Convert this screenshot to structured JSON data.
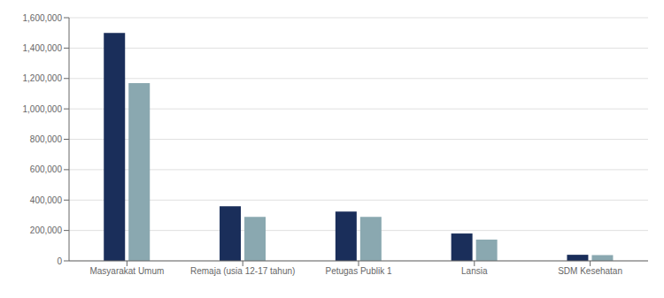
{
  "chart_data": {
    "type": "bar",
    "categories": [
      "Masyarakat Umum",
      "Remaja (usia 12-17 tahun)",
      "Petugas Publik 1",
      "Lansia",
      "SDM Kesehatan"
    ],
    "series": [
      {
        "color": "#1a2e5a",
        "values": [
          1500000,
          360000,
          325000,
          180000,
          40000
        ]
      },
      {
        "color": "#8aa8b0",
        "values": [
          1170000,
          290000,
          290000,
          140000,
          38000
        ]
      }
    ],
    "ylim": [
      0,
      1600000
    ],
    "yticks": [
      0,
      {
        "value": 200000,
        "label": "200,000"
      },
      {
        "value": 400000,
        "label": "400,000"
      },
      {
        "value": 600000,
        "label": "600,000"
      },
      {
        "value": 800000,
        "label": "800,000"
      },
      {
        "value": 1000000,
        "label": "1,000,000"
      },
      {
        "value": 1200000,
        "label": "1,200,000"
      },
      {
        "value": 1400000,
        "label": "1,400,000"
      },
      {
        "value": 1600000,
        "label": "1,600,000"
      }
    ],
    "grid": true
  }
}
